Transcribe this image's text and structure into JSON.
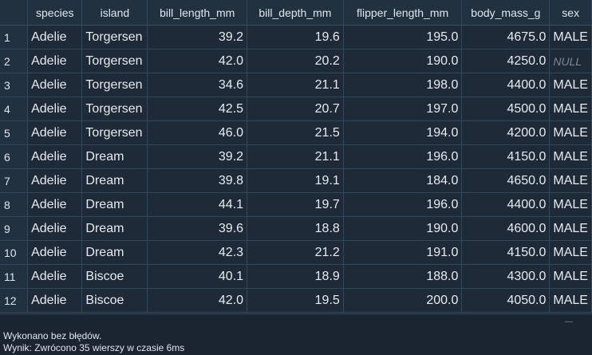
{
  "columns": [
    "species",
    "island",
    "bill_length_mm",
    "bill_depth_mm",
    "flipper_length_mm",
    "body_mass_g",
    "sex"
  ],
  "rows": [
    {
      "n": "1",
      "species": "Adelie",
      "island": "Torgersen",
      "bill_length_mm": "39.2",
      "bill_depth_mm": "19.6",
      "flipper_length_mm": "195.0",
      "body_mass_g": "4675.0",
      "sex": "MALE"
    },
    {
      "n": "2",
      "species": "Adelie",
      "island": "Torgersen",
      "bill_length_mm": "42.0",
      "bill_depth_mm": "20.2",
      "flipper_length_mm": "190.0",
      "body_mass_g": "4250.0",
      "sex": "NULL"
    },
    {
      "n": "3",
      "species": "Adelie",
      "island": "Torgersen",
      "bill_length_mm": "34.6",
      "bill_depth_mm": "21.1",
      "flipper_length_mm": "198.0",
      "body_mass_g": "4400.0",
      "sex": "MALE"
    },
    {
      "n": "4",
      "species": "Adelie",
      "island": "Torgersen",
      "bill_length_mm": "42.5",
      "bill_depth_mm": "20.7",
      "flipper_length_mm": "197.0",
      "body_mass_g": "4500.0",
      "sex": "MALE"
    },
    {
      "n": "5",
      "species": "Adelie",
      "island": "Torgersen",
      "bill_length_mm": "46.0",
      "bill_depth_mm": "21.5",
      "flipper_length_mm": "194.0",
      "body_mass_g": "4200.0",
      "sex": "MALE"
    },
    {
      "n": "6",
      "species": "Adelie",
      "island": "Dream",
      "bill_length_mm": "39.2",
      "bill_depth_mm": "21.1",
      "flipper_length_mm": "196.0",
      "body_mass_g": "4150.0",
      "sex": "MALE"
    },
    {
      "n": "7",
      "species": "Adelie",
      "island": "Dream",
      "bill_length_mm": "39.8",
      "bill_depth_mm": "19.1",
      "flipper_length_mm": "184.0",
      "body_mass_g": "4650.0",
      "sex": "MALE"
    },
    {
      "n": "8",
      "species": "Adelie",
      "island": "Dream",
      "bill_length_mm": "44.1",
      "bill_depth_mm": "19.7",
      "flipper_length_mm": "196.0",
      "body_mass_g": "4400.0",
      "sex": "MALE"
    },
    {
      "n": "9",
      "species": "Adelie",
      "island": "Dream",
      "bill_length_mm": "39.6",
      "bill_depth_mm": "18.8",
      "flipper_length_mm": "190.0",
      "body_mass_g": "4600.0",
      "sex": "MALE"
    },
    {
      "n": "10",
      "species": "Adelie",
      "island": "Dream",
      "bill_length_mm": "42.3",
      "bill_depth_mm": "21.2",
      "flipper_length_mm": "191.0",
      "body_mass_g": "4150.0",
      "sex": "MALE"
    },
    {
      "n": "11",
      "species": "Adelie",
      "island": "Biscoe",
      "bill_length_mm": "40.1",
      "bill_depth_mm": "18.9",
      "flipper_length_mm": "188.0",
      "body_mass_g": "4300.0",
      "sex": "MALE"
    },
    {
      "n": "12",
      "species": "Adelie",
      "island": "Biscoe",
      "bill_length_mm": "42.0",
      "bill_depth_mm": "19.5",
      "flipper_length_mm": "200.0",
      "body_mass_g": "4050.0",
      "sex": "MALE"
    }
  ],
  "status": {
    "line1": "Wykonano bez błędów.",
    "line2": "Wynik: Zwrócono 35 wierszy w czasie 6ms"
  }
}
